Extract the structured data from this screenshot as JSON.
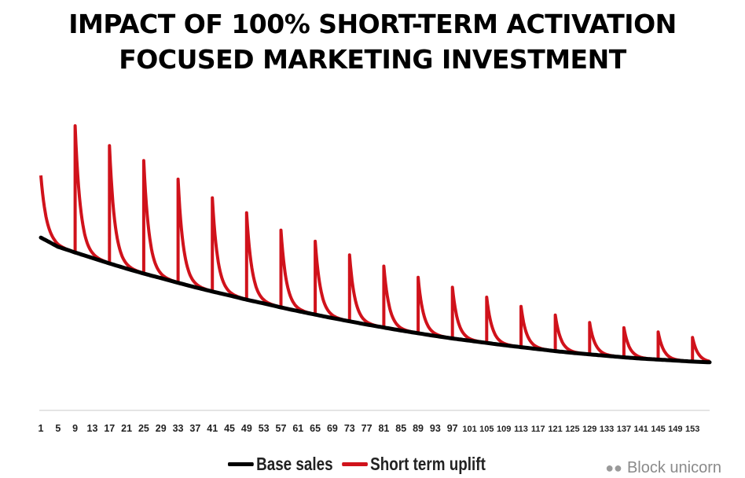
{
  "chart_data": {
    "type": "line",
    "title": "IMPACT OF 100% SHORT-TERM ACTIVATION FOCUSED MARKETING INVESTMENT",
    "title_lines": [
      "IMPACT OF 100% SHORT-TERM ACTIVATION",
      "FOCUSED MARKETING INVESTMENT"
    ],
    "xlabel": "",
    "ylabel": "",
    "x_ticks": [
      1,
      5,
      9,
      13,
      17,
      21,
      25,
      29,
      33,
      37,
      41,
      45,
      49,
      53,
      57,
      61,
      65,
      69,
      73,
      77,
      81,
      85,
      89,
      93,
      97,
      101,
      105,
      109,
      113,
      117,
      121,
      125,
      129,
      133,
      137,
      141,
      145,
      149,
      153
    ],
    "xlim": [
      1,
      157
    ],
    "ylim": [
      0,
      100
    ],
    "y_axis_visible": false,
    "grid": false,
    "legend_position": "bottom",
    "series": [
      {
        "name": "Base sales",
        "color": "#000000",
        "x": [
          1,
          5,
          9,
          13,
          17,
          21,
          25,
          29,
          33,
          37,
          41,
          45,
          49,
          53,
          57,
          61,
          65,
          69,
          73,
          77,
          81,
          85,
          89,
          93,
          97,
          101,
          105,
          109,
          113,
          117,
          121,
          125,
          129,
          133,
          137,
          141,
          145,
          149,
          153,
          157
        ],
        "values": [
          55,
          51.3,
          49,
          46.8,
          44.6,
          42.5,
          40.5,
          38.7,
          36.8,
          35,
          33.3,
          31.7,
          30,
          28.5,
          26.9,
          25.4,
          24,
          22.6,
          21.3,
          20,
          18.8,
          17.6,
          16.5,
          15.4,
          14.4,
          13.5,
          12.6,
          11.7,
          10.9,
          10.1,
          9.3,
          8.6,
          8,
          7.4,
          6.8,
          6.3,
          5.9,
          5.5,
          5.1,
          4.8
        ]
      },
      {
        "name": "Short term uplift",
        "color": "#d0121b",
        "pulse_x": [
          1,
          9,
          17,
          25,
          33,
          41,
          49,
          57,
          65,
          73,
          81,
          89,
          97,
          105,
          113,
          121,
          129,
          137,
          145,
          153
        ],
        "pulse_peak": [
          80,
          100,
          92,
          86,
          78.5,
          71,
          65,
          58,
          53.5,
          48,
          43.5,
          39,
          35,
          31,
          27.3,
          23.8,
          20.8,
          18.7,
          17,
          14.8
        ]
      }
    ]
  },
  "legend": {
    "items": [
      {
        "label": "Base sales",
        "color": "#000000"
      },
      {
        "label": "Short term uplift",
        "color": "#d0121b"
      }
    ]
  },
  "watermark": {
    "text": "Block unicorn",
    "icon": "wechat-icon"
  }
}
